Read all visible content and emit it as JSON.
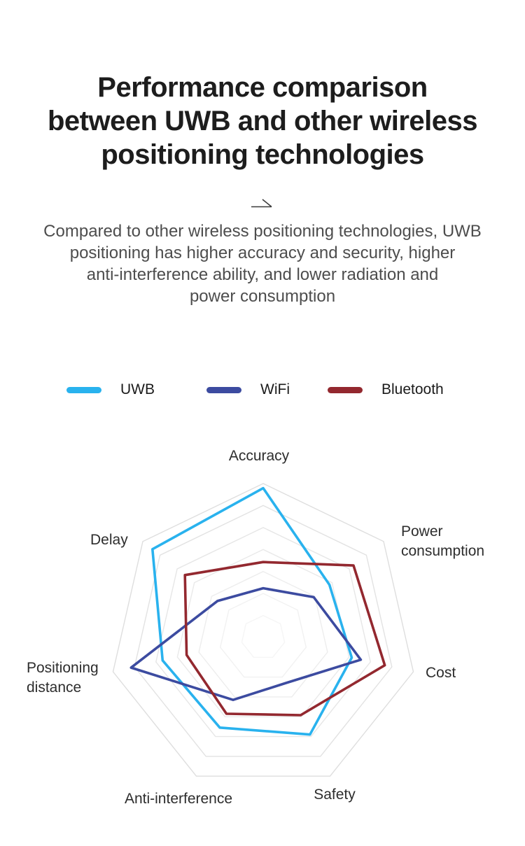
{
  "header": {
    "title_lines": [
      "Performance comparison",
      "between UWB and other wireless",
      "positioning technologies"
    ],
    "subtitle_lines": [
      "Compared to other wireless positioning technologies, UWB",
      "positioning has higher accuracy and security, higher",
      "anti-interference ability, and lower radiation and",
      "power consumption"
    ]
  },
  "legend": {
    "items": [
      {
        "label": "UWB",
        "color": "#29b2ee"
      },
      {
        "label": "WiFi",
        "color": "#3c4ba0"
      },
      {
        "label": "Bluetooth",
        "color": "#93282f"
      }
    ]
  },
  "chart_data": {
    "type": "radar",
    "title": "Performance comparison between UWB and other wireless positioning technologies",
    "categories": [
      "Accuracy",
      "Power consumption",
      "Cost",
      "Safety",
      "Anti-interference",
      "Positioning distance",
      "Delay"
    ],
    "value_range": [
      0,
      1
    ],
    "rings": 7,
    "grid_on": true,
    "grid_color": "#dedede",
    "legend_position": "top",
    "series": [
      {
        "name": "UWB",
        "color": "#29b2ee",
        "values": [
          0.97,
          0.55,
          0.59,
          0.7,
          0.65,
          0.67,
          0.92
        ]
      },
      {
        "name": "WiFi",
        "color": "#3c4ba0",
        "values": [
          0.32,
          0.42,
          0.65,
          0.33,
          0.45,
          0.88,
          0.38
        ]
      },
      {
        "name": "Bluetooth",
        "color": "#93282f",
        "values": [
          0.49,
          0.75,
          0.81,
          0.56,
          0.55,
          0.51,
          0.65
        ]
      }
    ]
  }
}
